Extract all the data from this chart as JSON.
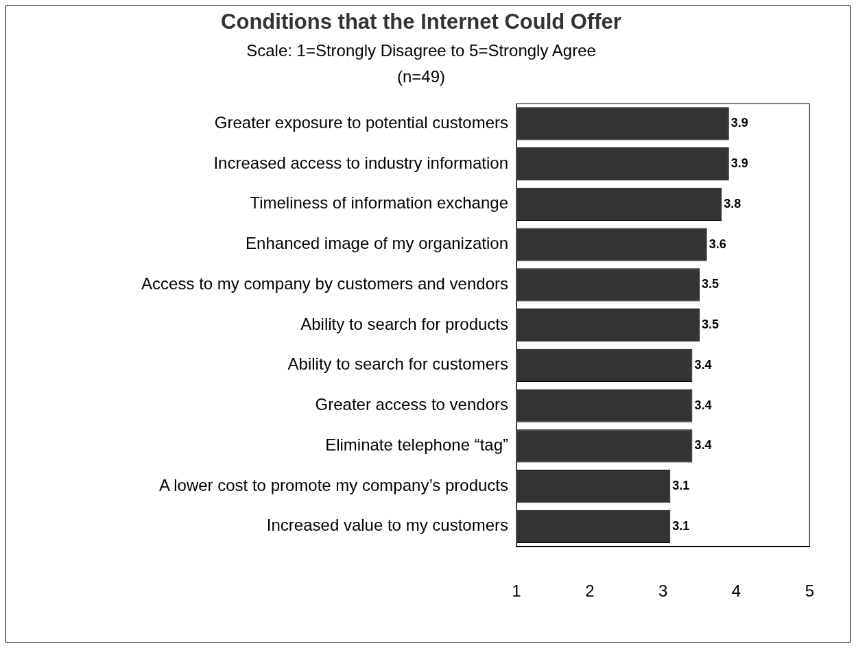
{
  "chart_data": {
    "type": "bar",
    "orientation": "horizontal",
    "title": "Conditions that the Internet Could Offer",
    "subtitle": "Scale: 1=Strongly Disagree to 5=Strongly Agree\n(n=49)",
    "categories": [
      "Greater exposure to potential customers",
      "Increased access to industry information",
      "Timeliness of information exchange",
      "Enhanced image of my organization",
      "Access to my company by customers and vendors",
      "Ability to search for products",
      "Ability to search for customers",
      "Greater access to vendors",
      "Eliminate telephone “tag”",
      "A lower cost to promote my company’s products",
      "Increased value to my customers"
    ],
    "values": [
      3.9,
      3.9,
      3.8,
      3.6,
      3.5,
      3.5,
      3.4,
      3.4,
      3.4,
      3.1,
      3.1
    ],
    "color": "#333333",
    "xlim": [
      1,
      5
    ],
    "xticks": [
      1,
      2,
      3,
      4,
      5
    ],
    "grid": false,
    "legend": false,
    "data_labels": true
  }
}
